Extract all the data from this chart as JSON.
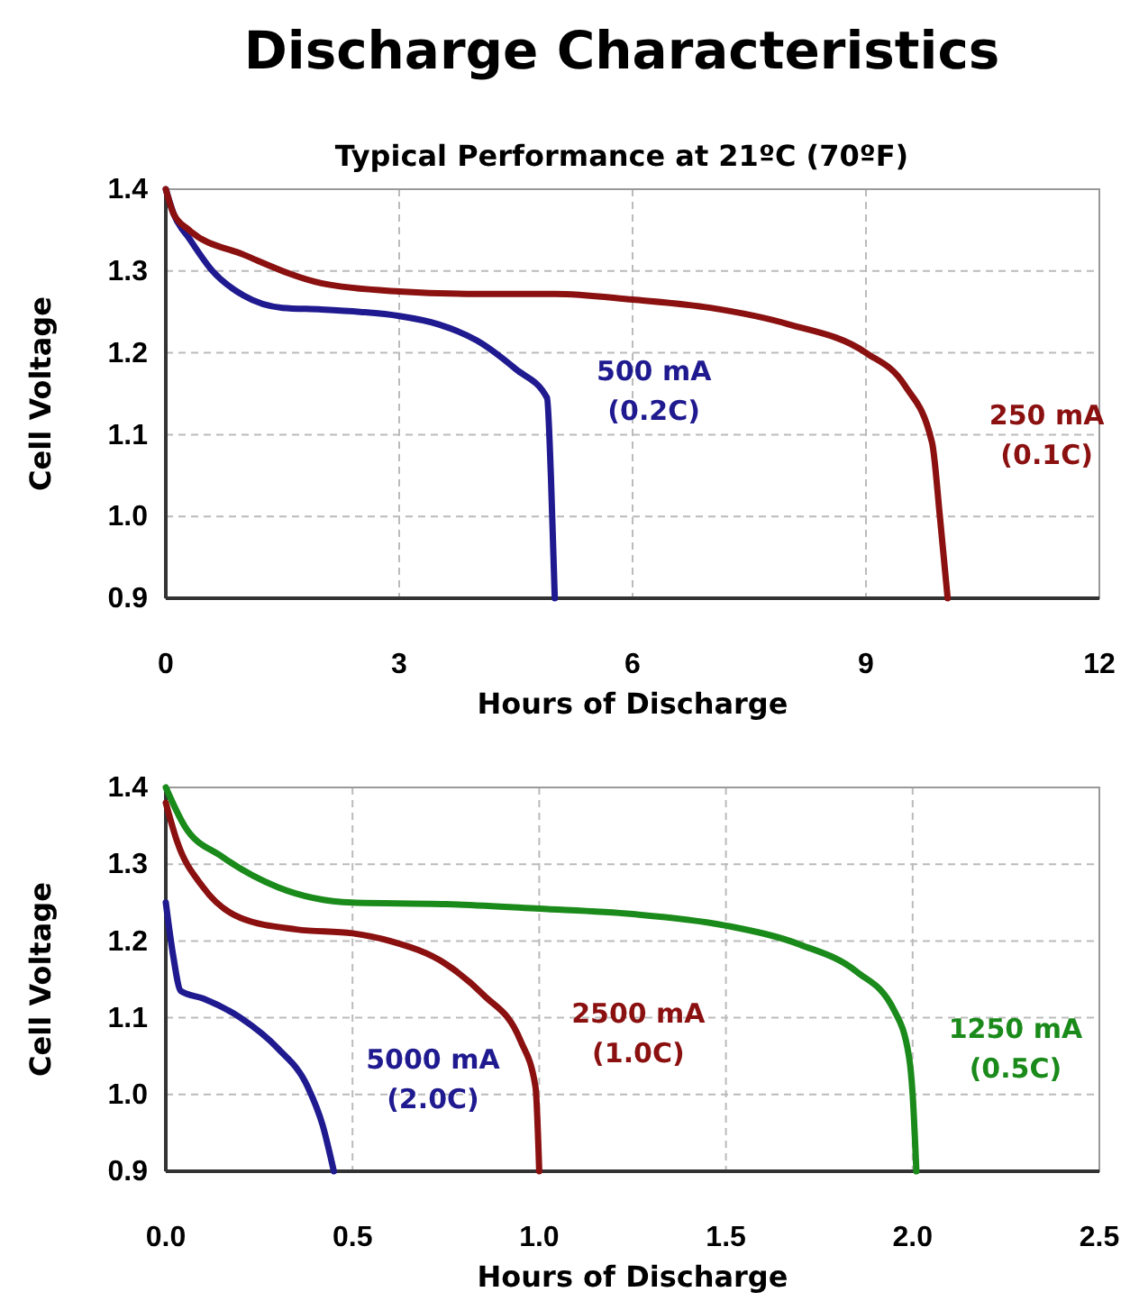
{
  "chart_data": [
    {
      "type": "line",
      "title": "Discharge Characteristics",
      "subtitle": "Typical Performance at 21ºC (70ºF)",
      "xlabel": "Hours of Discharge",
      "ylabel": "Cell Voltage",
      "xlim": [
        0,
        12
      ],
      "xticks": [
        0,
        3,
        6,
        9,
        12
      ],
      "ylim": [
        0.9,
        1.4
      ],
      "yticks": [
        0.9,
        {
          "value": 1,
          "label": "1.0"
        },
        1.1,
        1.2,
        1.3,
        1.4
      ],
      "grid": true,
      "series": [
        {
          "name": "500 mA (0.2C)",
          "color": "#1f1a8f",
          "x": [
            0,
            0.1,
            0.3,
            0.6,
            1,
            1.5,
            2,
            2.5,
            3,
            3.5,
            4,
            4.5,
            4.9,
            4.95,
            5.0
          ],
          "values": [
            1.4,
            1.37,
            1.34,
            1.3,
            1.27,
            1.255,
            1.253,
            1.25,
            1.245,
            1.235,
            1.215,
            1.18,
            1.145,
            1.05,
            0.9
          ]
        },
        {
          "name": "250 mA (0.1C)",
          "color": "#8b1010",
          "x": [
            0,
            0.1,
            0.3,
            1,
            2,
            3,
            4,
            5,
            6,
            7,
            8,
            9,
            9.5,
            9.85,
            9.95,
            10.05
          ],
          "values": [
            1.4,
            1.37,
            1.35,
            1.32,
            1.285,
            1.275,
            1.272,
            1.272,
            1.265,
            1.255,
            1.235,
            1.2,
            1.16,
            1.09,
            1.0,
            0.9
          ]
        }
      ]
    },
    {
      "type": "line",
      "xlabel": "Hours of Discharge",
      "ylabel": "Cell Voltage",
      "xlim": [
        0,
        2.5
      ],
      "xticks": [
        {
          "value": 0,
          "label": "0.0"
        },
        0.5,
        {
          "value": 1,
          "label": "1.0"
        },
        1.5,
        {
          "value": 2,
          "label": "2.0"
        },
        2.5
      ],
      "ylim": [
        0.9,
        1.4
      ],
      "yticks": [
        0.9,
        {
          "value": 1,
          "label": "1.0"
        },
        1.1,
        1.2,
        1.3,
        1.4
      ],
      "grid": true,
      "series": [
        {
          "name": "5000 mA (2.0C)",
          "color": "#1f1a8f",
          "x": [
            0,
            0.02,
            0.04,
            0.1,
            0.2,
            0.3,
            0.38,
            0.42,
            0.45
          ],
          "values": [
            1.25,
            1.18,
            1.135,
            1.125,
            1.1,
            1.06,
            1.01,
            0.96,
            0.9
          ]
        },
        {
          "name": "2500 mA (1.0C)",
          "color": "#8b1010",
          "x": [
            0,
            0.03,
            0.1,
            0.2,
            0.35,
            0.5,
            0.6,
            0.75,
            0.85,
            0.95,
            0.99,
            1.0
          ],
          "values": [
            1.38,
            1.33,
            1.27,
            1.23,
            1.215,
            1.21,
            1.2,
            1.17,
            1.13,
            1.07,
            1.01,
            0.9
          ]
        },
        {
          "name": "1250 mA (0.5C)",
          "color": "#1a8a1a",
          "x": [
            0,
            0.05,
            0.15,
            0.3,
            0.5,
            0.75,
            1,
            1.25,
            1.5,
            1.7,
            1.85,
            1.95,
            1.99,
            2.0,
            2.01
          ],
          "values": [
            1.4,
            1.35,
            1.31,
            1.27,
            1.25,
            1.248,
            1.242,
            1.235,
            1.22,
            1.195,
            1.16,
            1.11,
            1.05,
            1.0,
            0.9
          ]
        }
      ]
    }
  ]
}
